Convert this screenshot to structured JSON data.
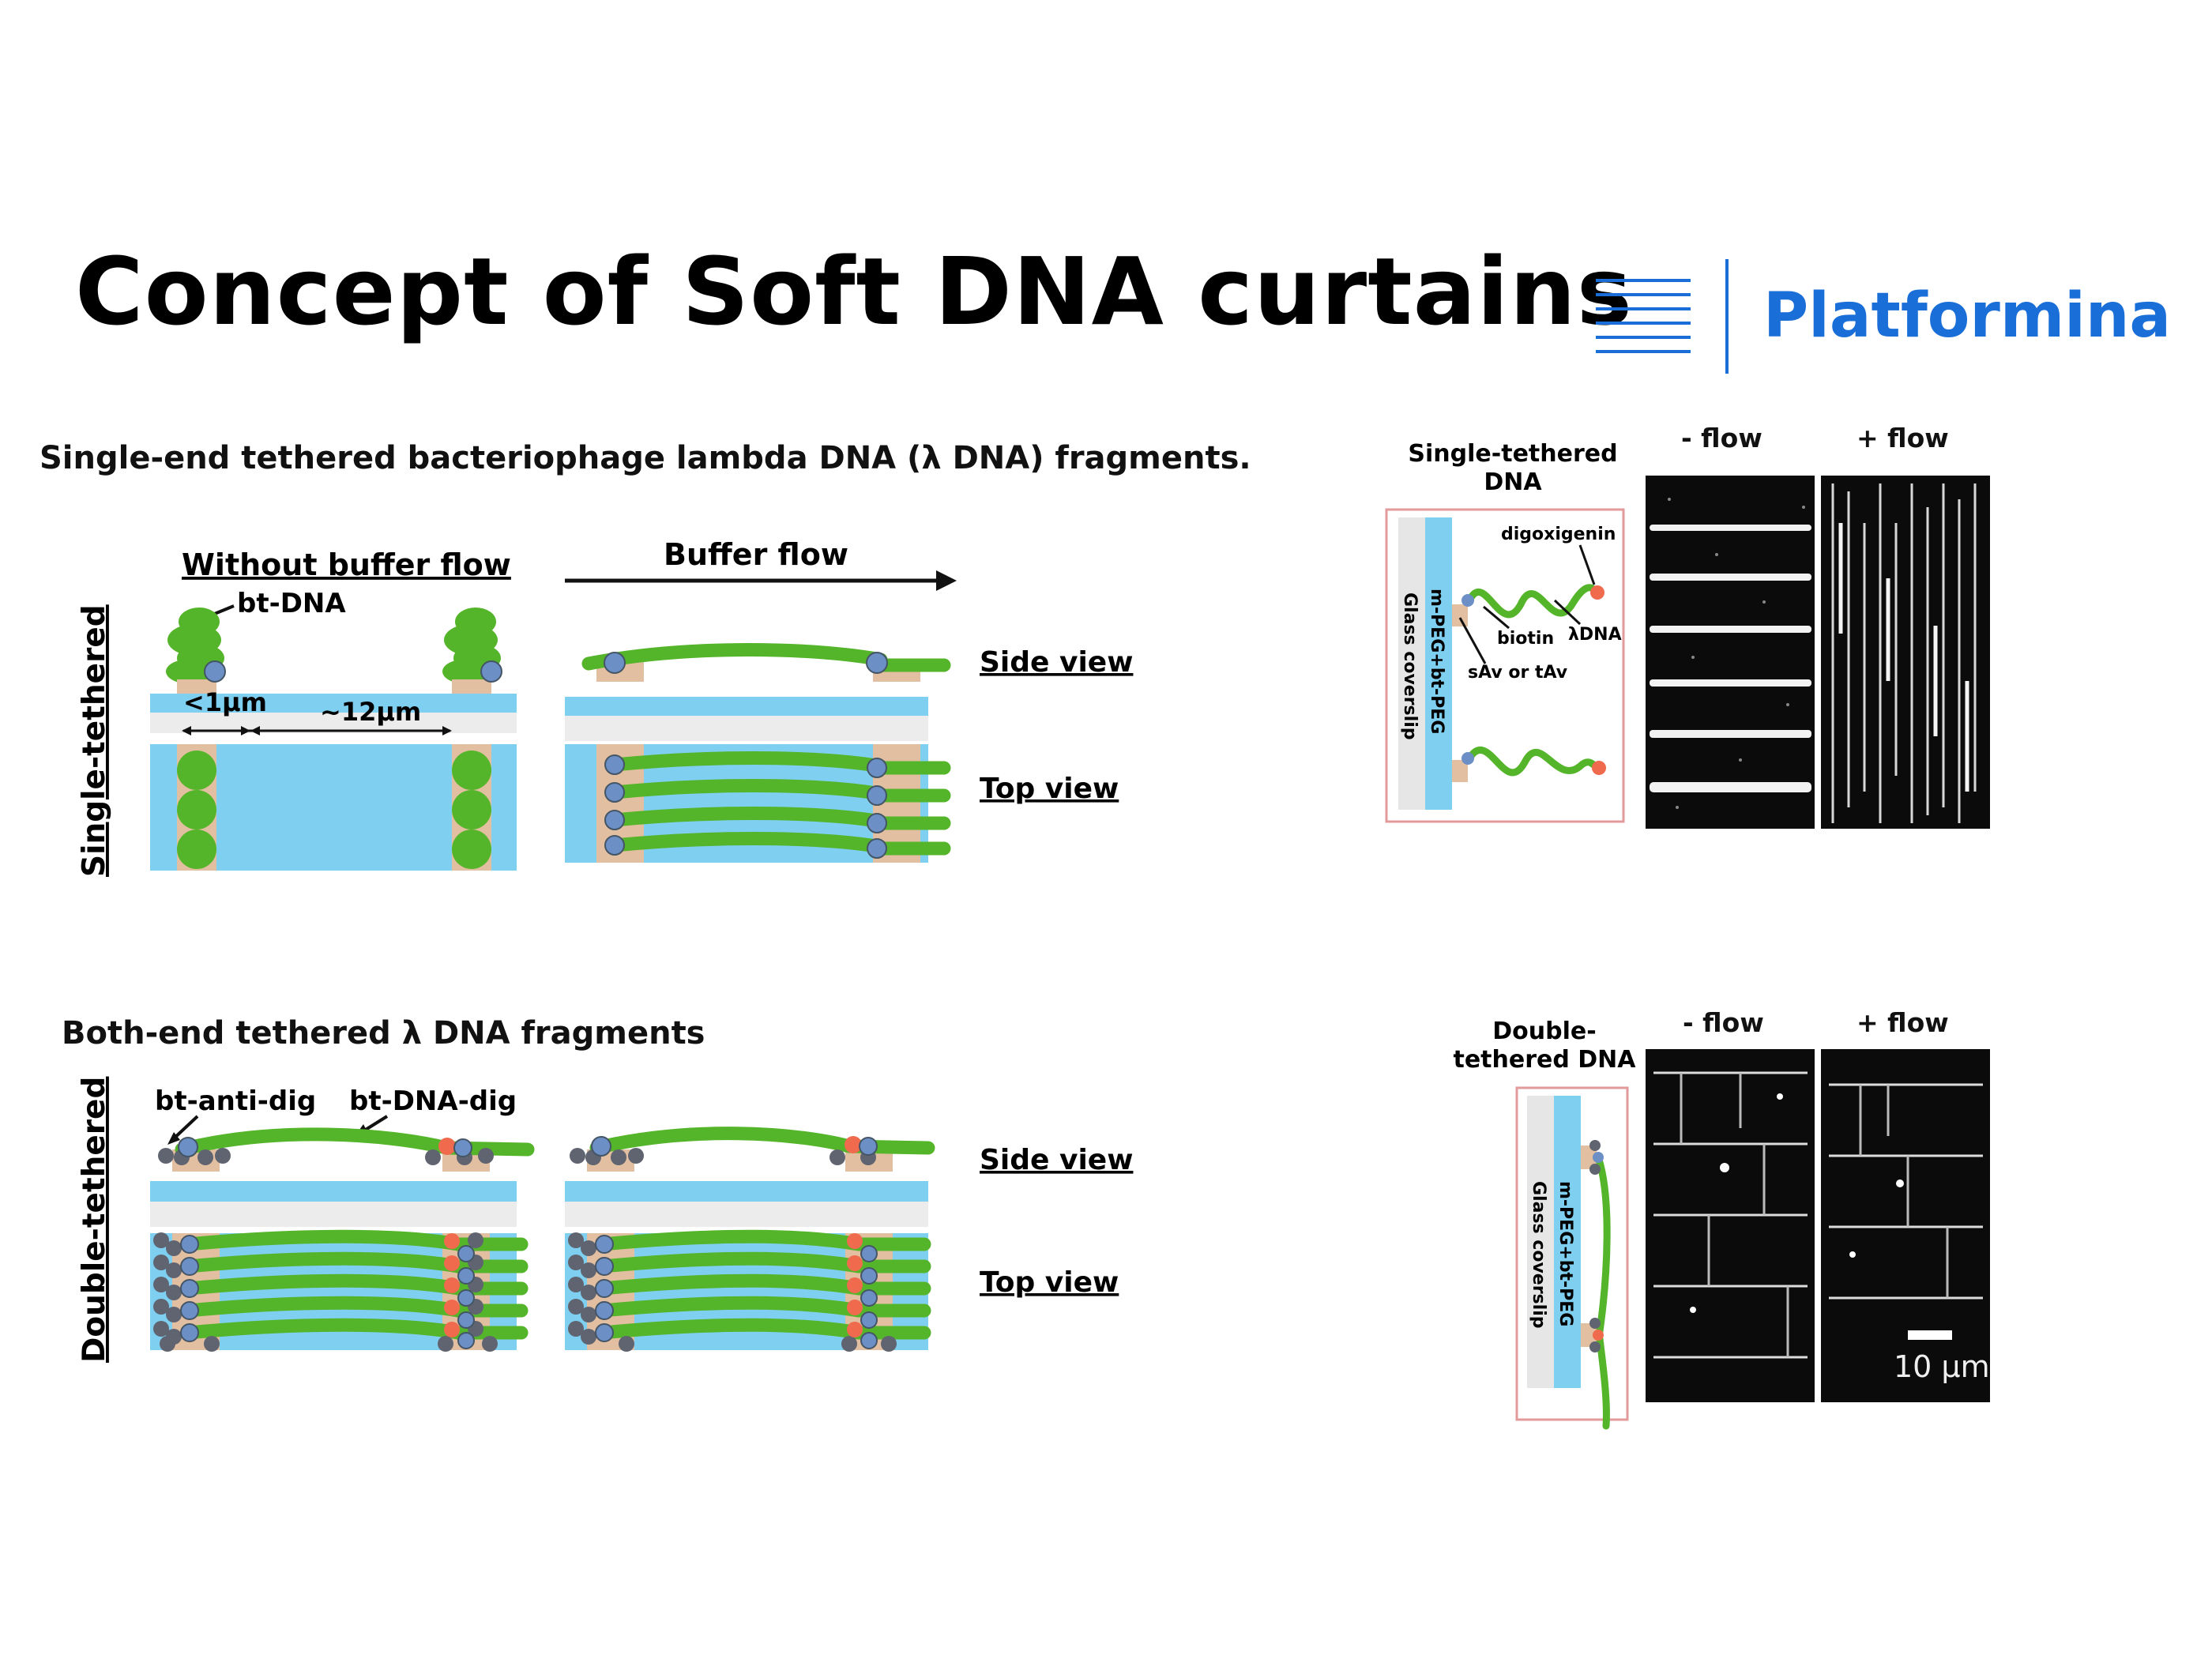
{
  "slide": {
    "title": "Concept of Soft DNA curtains",
    "brand": {
      "name": "Platformina",
      "color": "#1a6ed8",
      "icon": "menu-lines-icon"
    }
  },
  "single": {
    "heading": "Single-end tethered bacteriophage lambda DNA (λ DNA) fragments.",
    "row_label": "Single-tethered",
    "without_flow_label": "Without buffer flow",
    "bt_dna_label": "bt-DNA",
    "spacing_small": "<1μm",
    "spacing_large": "~12μm",
    "buffer_flow_label": "Buffer flow",
    "side_view": "Side view",
    "top_view": "Top view",
    "micro": {
      "schematic_title": "Single-tethered\nDNA",
      "minus_flow": "- flow",
      "plus_flow": "+ flow",
      "digoxigenin": "digoxigenin",
      "biotin": "biotin",
      "lambda_dna": "λDNA",
      "sav": "sAv or tAv",
      "peg": "m-PEG+bt-PEG",
      "glass": "Glass coverslip"
    }
  },
  "double": {
    "heading": "Both-end tethered λ DNA fragments",
    "row_label": "Double-tethered",
    "anti_dig_label": "bt-anti-dig",
    "dna_dig_label": "bt-DNA-dig",
    "side_view": "Side view",
    "top_view": "Top view",
    "micro": {
      "schematic_title": "Double-\ntethered DNA",
      "minus_flow": "- flow",
      "plus_flow": "+ flow",
      "peg": "m-PEG+bt-PEG",
      "glass": "Glass coverslip",
      "scale_label": "10 μm"
    }
  },
  "colors": {
    "dna_green": "#55b52a",
    "surface_blue": "#7fcff0",
    "pedestal_tan": "#e2bfa0",
    "biotin_blue": "#6c8fc6",
    "dig_red": "#f06a4e",
    "anchor_gray": "#5f6470",
    "frame_red": "#e29a9a"
  }
}
